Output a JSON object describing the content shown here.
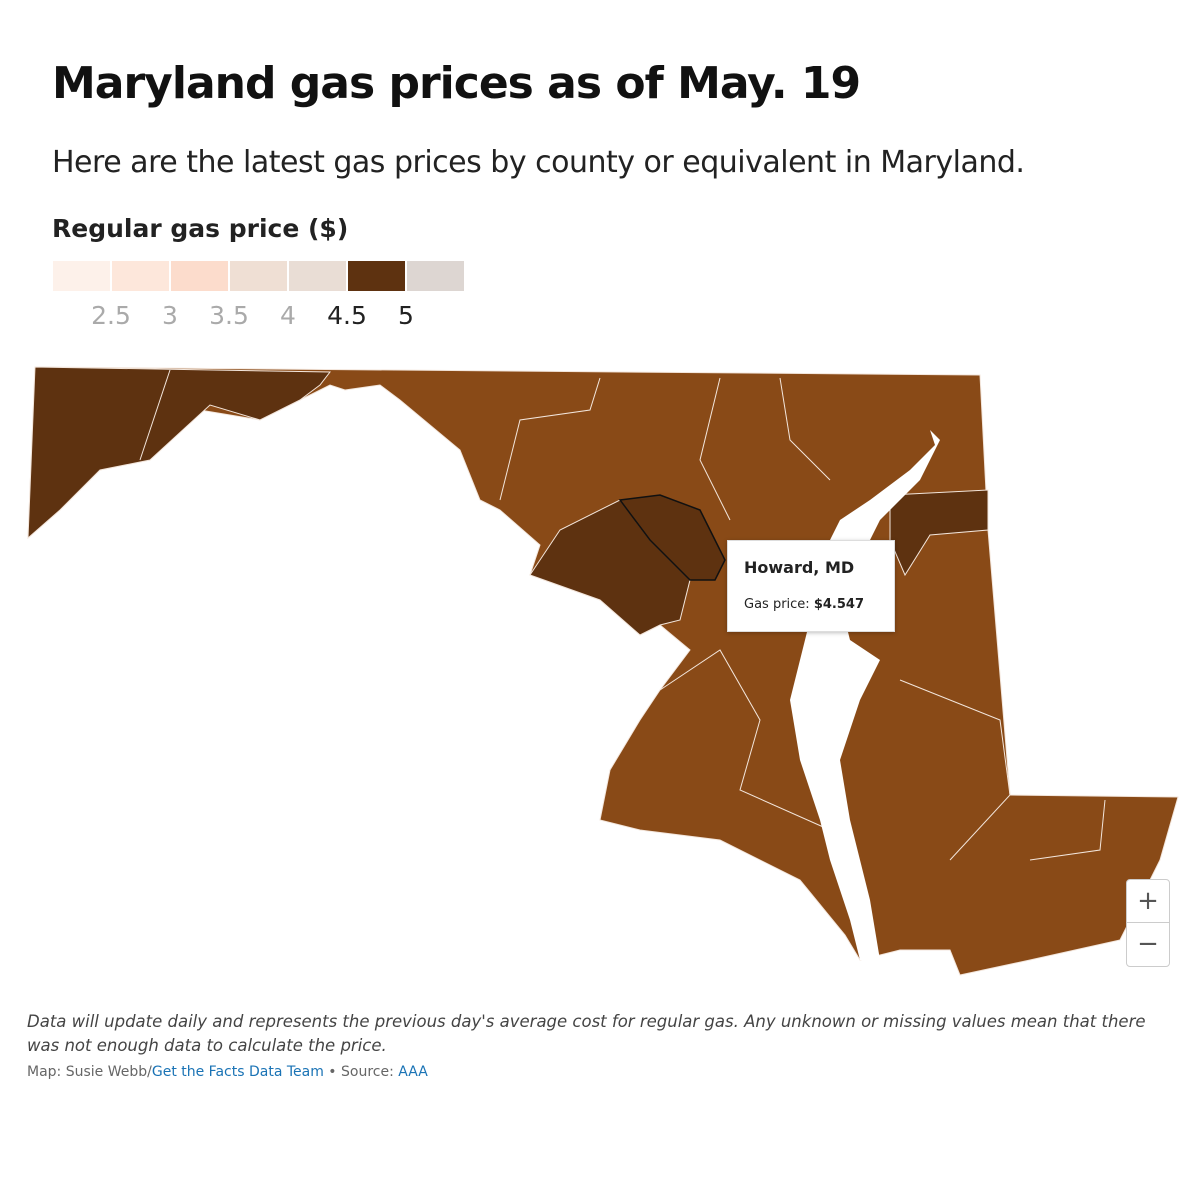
{
  "header": {
    "title": "Maryland gas prices as of May. 19",
    "subtitle": "Here are the latest gas prices by county or equivalent in Maryland."
  },
  "legend": {
    "title": "Regular gas price ($)",
    "colors": [
      "#fdf1ea",
      "#fde7db",
      "#fcdccc",
      "#efdfd4",
      "#e9ddd5",
      "#5e3210",
      "#ddd6d2"
    ],
    "ticks": [
      2.5,
      3,
      3.5,
      4,
      4.5,
      5
    ]
  },
  "tooltip": {
    "county": "Howard, MD",
    "label": "Gas price:",
    "value": "$4.547"
  },
  "zoom": {
    "in": "+",
    "out": "−"
  },
  "footer": {
    "note": "Data will update daily and represents the previous day's average cost for regular gas. Any unknown or missing values mean that there was not enough data to calculate the price.",
    "credit_prefix": "Map: Susie Webb/",
    "credit_link": "Get the Facts Data Team",
    "separator": " • Source: ",
    "source_link": "AAA"
  }
}
